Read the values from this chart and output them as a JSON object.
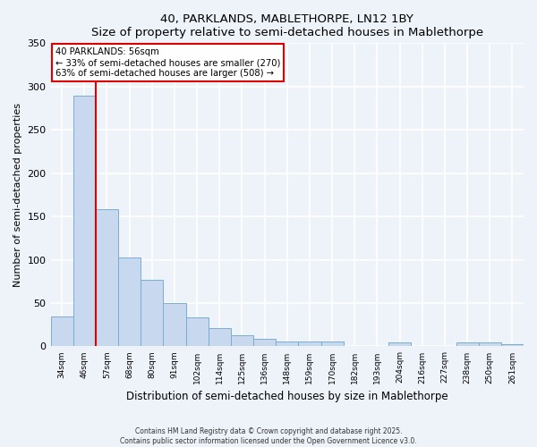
{
  "title": "40, PARKLANDS, MABLETHORPE, LN12 1BY",
  "subtitle": "Size of property relative to semi-detached houses in Mablethorpe",
  "xlabel": "Distribution of semi-detached houses by size in Mablethorpe",
  "ylabel": "Number of semi-detached properties",
  "bin_labels": [
    "34sqm",
    "46sqm",
    "57sqm",
    "68sqm",
    "80sqm",
    "91sqm",
    "102sqm",
    "114sqm",
    "125sqm",
    "136sqm",
    "148sqm",
    "159sqm",
    "170sqm",
    "182sqm",
    "193sqm",
    "204sqm",
    "216sqm",
    "227sqm",
    "238sqm",
    "250sqm",
    "261sqm"
  ],
  "bar_values": [
    35,
    289,
    158,
    103,
    77,
    50,
    33,
    21,
    13,
    9,
    6,
    6,
    6,
    0,
    0,
    5,
    0,
    0,
    5,
    5,
    3
  ],
  "bar_color": "#c8d8ee",
  "bar_edgecolor": "#7aadd4",
  "annotation_title": "40 PARKLANDS: 56sqm",
  "annotation_line1": "← 33% of semi-detached houses are smaller (270)",
  "annotation_line2": "63% of semi-detached houses are larger (508) →",
  "annotation_box_facecolor": "#ffffff",
  "annotation_box_edgecolor": "#dd0000",
  "vline_color": "#dd0000",
  "vline_x_index": 2,
  "ylim": [
    0,
    350
  ],
  "yticks": [
    0,
    50,
    100,
    150,
    200,
    250,
    300,
    350
  ],
  "footer1": "Contains HM Land Registry data © Crown copyright and database right 2025.",
  "footer2": "Contains public sector information licensed under the Open Government Licence v3.0.",
  "background_color": "#eef2f9",
  "grid_color": "#ffffff",
  "fig_width": 6.0,
  "fig_height": 5.0,
  "fig_dpi": 100
}
